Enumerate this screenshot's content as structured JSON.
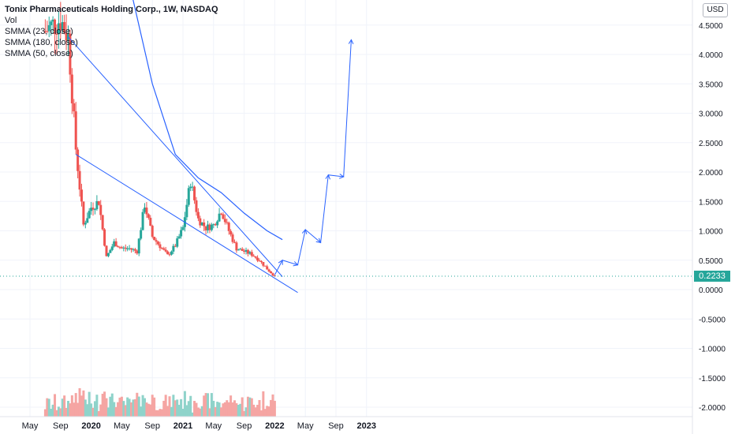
{
  "header": {
    "title": "Tonix Pharmaceuticals Holding Corp., 1W, NASDAQ",
    "indicators": [
      "Vol",
      "SMMA (23, close)",
      "SMMA (180, close)",
      "SMMA (50, close)"
    ]
  },
  "currency_button": "USD",
  "last_price_label": "0.2233",
  "colors": {
    "up": "#26a69a",
    "down": "#ef5350",
    "vol_up": "#8fd3ca",
    "vol_down": "#f5a5a3",
    "line": "#2962ff",
    "smma": "#2962ff",
    "price_line": "#26a69a"
  },
  "chart_data": {
    "type": "candlestick",
    "x_ticks": [
      "May",
      "Sep",
      "2020",
      "May",
      "Sep",
      "2021",
      "May",
      "Sep",
      "2022",
      "May",
      "Sep",
      "2023"
    ],
    "y_ticks": [
      "4.5000",
      "4.0000",
      "3.5000",
      "3.0000",
      "2.5000",
      "2.0000",
      "1.5000",
      "1.0000",
      "0.5000",
      "0.0000",
      "-0.5000",
      "-1.0000",
      "-1.5000",
      "-2.0000"
    ],
    "y_range": [
      -2.25,
      4.95
    ],
    "last_price": 0.2233,
    "price_keypoints": [
      {
        "t": "2019-07",
        "p": 4.4
      },
      {
        "t": "2019-09",
        "p": 4.6
      },
      {
        "t": "2019-10",
        "p": 4.3
      },
      {
        "t": "2019-11",
        "p": 2.4
      },
      {
        "t": "2019-12",
        "p": 1.1
      },
      {
        "t": "2020-01",
        "p": 1.4
      },
      {
        "t": "2020-02",
        "p": 1.5
      },
      {
        "t": "2020-03",
        "p": 0.55
      },
      {
        "t": "2020-04",
        "p": 0.8
      },
      {
        "t": "2020-05",
        "p": 0.7
      },
      {
        "t": "2020-06",
        "p": 0.7
      },
      {
        "t": "2020-07",
        "p": 0.65
      },
      {
        "t": "2020-08",
        "p": 1.45
      },
      {
        "t": "2020-09",
        "p": 0.9
      },
      {
        "t": "2020-11",
        "p": 0.58
      },
      {
        "t": "2020-12",
        "p": 0.75
      },
      {
        "t": "2021-01",
        "p": 1.05
      },
      {
        "t": "2021-02",
        "p": 1.85
      },
      {
        "t": "2021-03",
        "p": 1.2
      },
      {
        "t": "2021-04",
        "p": 1.05
      },
      {
        "t": "2021-05",
        "p": 1.1
      },
      {
        "t": "2021-06",
        "p": 1.35
      },
      {
        "t": "2021-07",
        "p": 1.0
      },
      {
        "t": "2021-08",
        "p": 0.7
      },
      {
        "t": "2021-10",
        "p": 0.6
      },
      {
        "t": "2021-11",
        "p": 0.5
      },
      {
        "t": "2021-12",
        "p": 0.35
      },
      {
        "t": "2022-01",
        "p": 0.2233
      }
    ],
    "drawings": {
      "upper_trendline": [
        {
          "t": "2019-10",
          "p": 4.3
        },
        {
          "t": "2022-02",
          "p": 0.22
        }
      ],
      "lower_trendline": [
        {
          "t": "2019-11",
          "p": 2.3
        },
        {
          "t": "2022-04",
          "p": -0.05
        }
      ],
      "projection_arrow": [
        {
          "t": "2022-01",
          "p": 0.25
        },
        {
          "t": "2022-02",
          "p": 0.5
        },
        {
          "t": "2022-04",
          "p": 0.42
        },
        {
          "t": "2022-05",
          "p": 1.02
        },
        {
          "t": "2022-07",
          "p": 0.8
        },
        {
          "t": "2022-08",
          "p": 1.95
        },
        {
          "t": "2022-10",
          "p": 1.92
        },
        {
          "t": "2022-11",
          "p": 4.25
        }
      ]
    },
    "smma_keypoints": [
      {
        "t": "2020-06",
        "p": 5.2
      },
      {
        "t": "2020-09",
        "p": 3.5
      },
      {
        "t": "2020-12",
        "p": 2.3
      },
      {
        "t": "2021-03",
        "p": 1.9
      },
      {
        "t": "2021-06",
        "p": 1.65
      },
      {
        "t": "2021-09",
        "p": 1.3
      },
      {
        "t": "2021-12",
        "p": 1.0
      },
      {
        "t": "2022-02",
        "p": 0.85
      }
    ]
  }
}
